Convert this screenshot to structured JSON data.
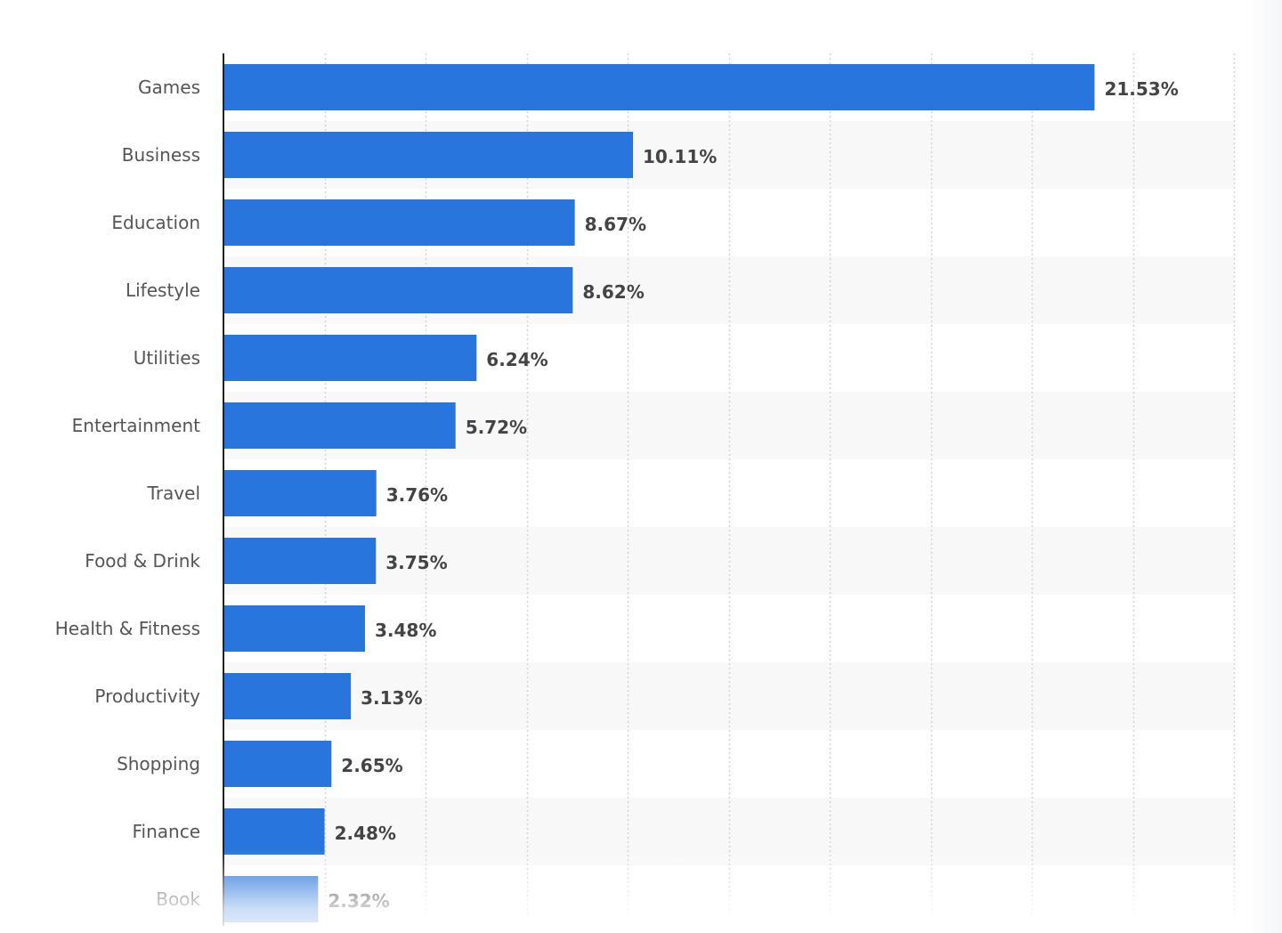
{
  "chart_data": {
    "type": "bar",
    "orientation": "horizontal",
    "categories": [
      "Games",
      "Business",
      "Education",
      "Lifestyle",
      "Utilities",
      "Entertainment",
      "Travel",
      "Food & Drink",
      "Health & Fitness",
      "Productivity",
      "Shopping",
      "Finance",
      "Book"
    ],
    "values": [
      21.53,
      10.11,
      8.67,
      8.62,
      6.24,
      5.72,
      3.76,
      3.75,
      3.48,
      3.13,
      2.65,
      2.48,
      2.32
    ],
    "value_labels": [
      "21.53%",
      "10.11%",
      "8.67%",
      "8.62%",
      "6.24%",
      "5.72%",
      "3.76%",
      "3.75%",
      "3.48%",
      "3.13%",
      "2.65%",
      "2.48%",
      "2.32%"
    ],
    "xlim": [
      0,
      25
    ],
    "grid_step": 2.5,
    "grid": true,
    "bar_color": "#2876dd",
    "band_color": "#f8f8f8",
    "title": "",
    "xlabel": "",
    "ylabel": ""
  }
}
